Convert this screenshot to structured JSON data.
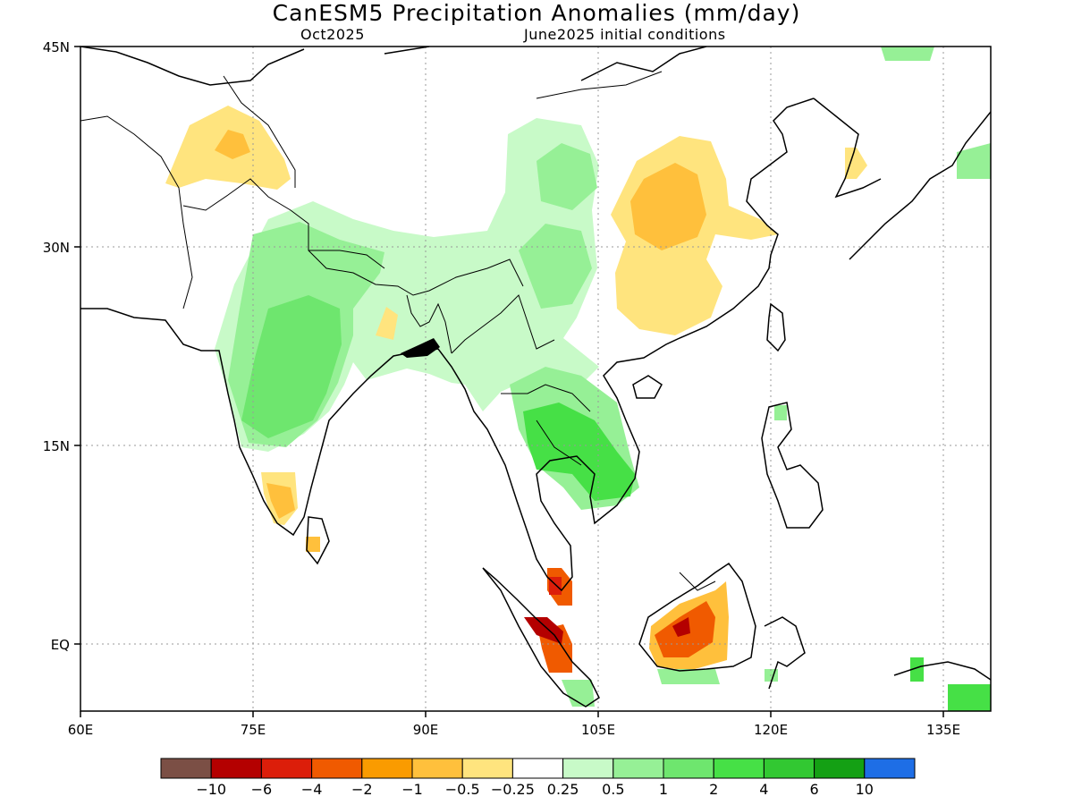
{
  "title": "CanESM5 Precipitation Anomalies (mm/day)",
  "subtitle_left": "Oct2025",
  "subtitle_right": "June2025 initial conditions",
  "axes": {
    "lon_ticks": [
      "60E",
      "75E",
      "90E",
      "105E",
      "120E",
      "135E"
    ],
    "lat_ticks": [
      "45N",
      "30N",
      "15N",
      "EQ"
    ],
    "lon_range": [
      60,
      139
    ],
    "lat_range": [
      -5,
      45
    ],
    "grid": "dotted"
  },
  "colorbar": {
    "colors": [
      "#7b4f45",
      "#b40000",
      "#dc1e0a",
      "#f05a00",
      "#fa9b00",
      "#ffc03c",
      "#ffe47e",
      "#ffffff",
      "#c8fac8",
      "#96f096",
      "#6ee66e",
      "#46e046",
      "#32c832",
      "#14a014",
      "#1e6ee6"
    ],
    "labels": [
      "-10",
      "-6",
      "-4",
      "-2",
      "-1",
      "-0.5",
      "-0.25",
      "0.25",
      "0.5",
      "1",
      "2",
      "4",
      "6",
      "10"
    ]
  }
}
